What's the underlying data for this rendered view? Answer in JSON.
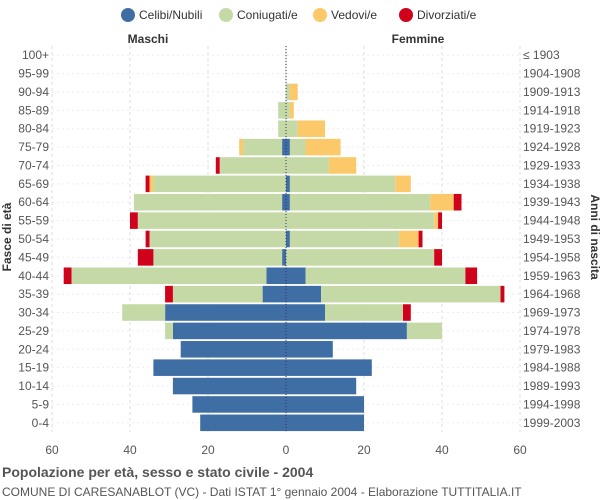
{
  "chart_data": {
    "type": "bar",
    "orientation": "horizontal-population-pyramid",
    "title": "Popolazione per età, sesso e stato civile - 2004",
    "subtitle": "COMUNE DI CARESANABLOT (VC) - Dati ISTAT 1° gennaio 2004 - Elaborazione TUTTITALIA.IT",
    "left_header": "Maschi",
    "right_header": "Femmine",
    "ylabel_left": "Fasce di età",
    "ylabel_right": "Anni di nascita",
    "xlim": [
      -60,
      60
    ],
    "xticks": [
      -60,
      -40,
      -20,
      0,
      20,
      40,
      60
    ],
    "xtick_labels": [
      "60",
      "40",
      "20",
      "0",
      "20",
      "40",
      "60"
    ],
    "legend": [
      {
        "name": "Celibi/Nubili",
        "color": "#3f6ea5"
      },
      {
        "name": "Coniugati/e",
        "color": "#c5d9a7"
      },
      {
        "name": "Vedovi/e",
        "color": "#fcc96a"
      },
      {
        "name": "Divorziati/e",
        "color": "#d0021b"
      }
    ],
    "age_groups": [
      "100+",
      "95-99",
      "90-94",
      "85-89",
      "80-84",
      "75-79",
      "70-74",
      "65-69",
      "60-64",
      "55-59",
      "50-54",
      "45-49",
      "40-44",
      "35-39",
      "30-34",
      "25-29",
      "20-24",
      "15-19",
      "10-14",
      "5-9",
      "0-4"
    ],
    "birth_years": [
      "≤ 1903",
      "1904-1908",
      "1909-1913",
      "1914-1918",
      "1919-1923",
      "1924-1928",
      "1929-1933",
      "1934-1938",
      "1939-1943",
      "1944-1948",
      "1949-1953",
      "1954-1958",
      "1959-1963",
      "1964-1968",
      "1969-1973",
      "1974-1978",
      "1979-1983",
      "1984-1988",
      "1989-1993",
      "1994-1998",
      "1999-2003"
    ],
    "males": {
      "celibi": [
        0,
        0,
        0,
        0,
        0,
        1,
        0,
        0,
        1,
        0,
        0,
        1,
        5,
        6,
        31,
        29,
        27,
        34,
        29,
        24,
        22
      ],
      "coniugati": [
        0,
        0,
        0,
        2,
        2,
        10,
        17,
        34,
        38,
        38,
        35,
        33,
        50,
        23,
        11,
        2,
        0,
        0,
        0,
        0,
        0
      ],
      "vedovi": [
        0,
        0,
        0,
        0,
        0,
        1,
        0,
        1,
        0,
        0,
        0,
        0,
        0,
        0,
        0,
        0,
        0,
        0,
        0,
        0,
        0
      ],
      "divorziati": [
        0,
        0,
        0,
        0,
        0,
        0,
        1,
        1,
        0,
        2,
        1,
        4,
        2,
        2,
        0,
        0,
        0,
        0,
        0,
        0,
        0
      ]
    },
    "females": {
      "nubili": [
        0,
        0,
        0,
        0,
        0,
        1,
        0,
        1,
        1,
        0,
        1,
        0,
        5,
        9,
        10,
        31,
        12,
        22,
        18,
        20,
        20
      ],
      "coniugate": [
        0,
        0,
        1,
        1,
        3,
        4,
        11,
        27,
        36,
        38,
        28,
        38,
        41,
        46,
        20,
        9,
        0,
        0,
        0,
        0,
        0
      ],
      "vedove": [
        0,
        0,
        2,
        1,
        7,
        9,
        7,
        4,
        6,
        1,
        5,
        0,
        0,
        0,
        0,
        0,
        0,
        0,
        0,
        0,
        0
      ],
      "divorziate": [
        0,
        0,
        0,
        0,
        0,
        0,
        0,
        0,
        2,
        1,
        1,
        2,
        3,
        1,
        2,
        0,
        0,
        0,
        0,
        0,
        0
      ]
    }
  }
}
